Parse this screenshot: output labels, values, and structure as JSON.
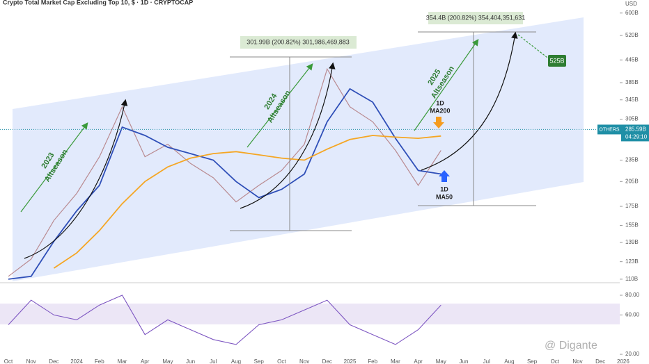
{
  "chart_data": {
    "type": "line",
    "title": "Crypto Total Market Cap Excluding Top 10, $ · 1D · CRYPTOCAP",
    "currency": "USD",
    "symbol": "OTHERS",
    "countdown": "04:29:10",
    "watermark": "@ Digante",
    "log_scale": true,
    "categories": [
      "Oct",
      "Nov",
      "Dec",
      "2024",
      "Feb",
      "Mar",
      "Apr",
      "May",
      "Jun",
      "Jul",
      "Aug",
      "Sep",
      "Oct",
      "Nov",
      "Dec",
      "2025",
      "Feb",
      "Mar",
      "Apr",
      "May",
      "Jun",
      "Jul",
      "Aug",
      "Sep",
      "Oct",
      "Nov",
      "Dec",
      "2026"
    ],
    "series": [
      {
        "color": "#b98a90",
        "values": [
          112,
          125,
          160,
          190,
          240,
          330,
          240,
          260,
          230,
          210,
          180,
          200,
          220,
          260,
          420,
          330,
          300,
          250,
          200,
          250,
          null,
          null,
          null,
          null,
          null,
          null,
          null,
          null
        ]
      },
      {
        "color": "#2f4fb8",
        "values": [
          110,
          112,
          140,
          170,
          200,
          290,
          275,
          255,
          245,
          235,
          205,
          185,
          195,
          215,
          300,
          370,
          340,
          270,
          220,
          215,
          null,
          null,
          null,
          null,
          null,
          null,
          null,
          null
        ]
      },
      {
        "color": "#f5a623",
        "values": [
          null,
          null,
          118,
          130,
          150,
          178,
          205,
          225,
          238,
          245,
          248,
          243,
          238,
          235,
          252,
          268,
          275,
          272,
          270,
          274,
          null,
          null,
          null,
          null,
          null,
          null,
          null,
          null
        ]
      }
    ],
    "last_price": {
      "value": 285.59,
      "label": "285.59B"
    },
    "ylim": [
      108.5,
      652
    ],
    "yticks": [
      {
        "value": 600,
        "label": "600B"
      },
      {
        "value": 520,
        "label": "520B"
      },
      {
        "value": 445,
        "label": "445B"
      },
      {
        "value": 385,
        "label": "385B"
      },
      {
        "value": 345,
        "label": "345B"
      },
      {
        "value": 305,
        "label": "305B"
      },
      {
        "value": 235,
        "label": "235B"
      },
      {
        "value": 205,
        "label": "205B"
      },
      {
        "value": 175,
        "label": "175B"
      },
      {
        "value": 155,
        "label": "155B"
      },
      {
        "value": 139,
        "label": "139B"
      },
      {
        "value": 123,
        "label": "123B"
      },
      {
        "value": 110,
        "label": "110B"
      }
    ],
    "rsi": {
      "color": "#7e57c2",
      "values": [
        50,
        75,
        60,
        55,
        70,
        80,
        40,
        55,
        45,
        35,
        30,
        50,
        55,
        65,
        75,
        50,
        40,
        30,
        45,
        70,
        null,
        null,
        null,
        null,
        null,
        null,
        null,
        null
      ],
      "ylim": [
        16.5,
        90.6
      ],
      "yticks": [
        {
          "value": 80,
          "label": "80.00"
        },
        {
          "value": 60,
          "label": "60.00"
        },
        {
          "value": 20,
          "label": "20.00"
        }
      ]
    },
    "annotations": {
      "measure_2024": "301.99B (200.82%) 301,986,469,883",
      "measure_2025": "354.4B (200.82%) 354,404,351,631",
      "target": "525B",
      "season_2023": [
        "2023",
        "Altseason"
      ],
      "season_2024": [
        "2024",
        "Altseason"
      ],
      "season_2025": [
        "2025",
        "Altseason"
      ],
      "ma200": [
        "1D",
        "MA200"
      ],
      "ma50": [
        "1D",
        "MA50"
      ]
    }
  }
}
